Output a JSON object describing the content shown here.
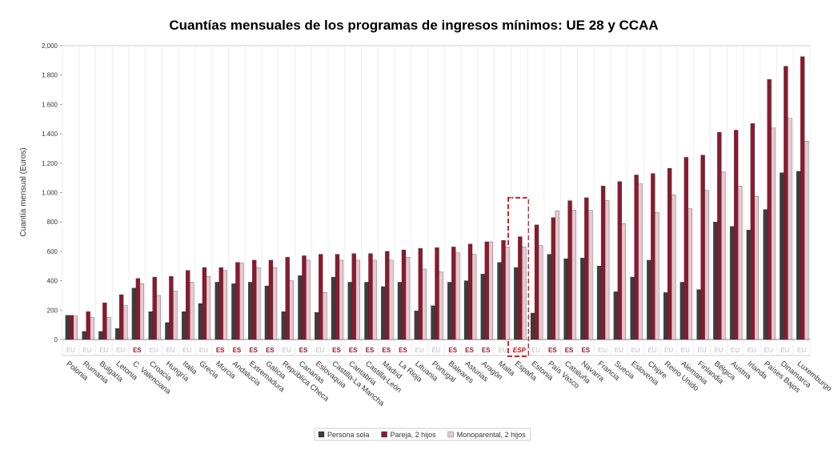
{
  "chart_data": {
    "type": "bar",
    "title": "Cuantías mensuales de los programas de ingresos mínimos: UE 28 y CCAA",
    "y_label": "Cuantía mensual (Euros)",
    "categories": [
      "Polonia",
      "Rumania",
      "Bulgaria",
      "Letonia",
      "C. Valenciana",
      "Croacia",
      "Hungría",
      "Italia",
      "Grecia",
      "Murcia",
      "Andalucía",
      "Extremadura",
      "Galicia",
      "República Checa",
      "Canarias",
      "Eslovaquia",
      "Castilla-La Mancha",
      "Cantabria",
      "Castilla-León",
      "Madrid",
      "La Rioja",
      "Lituania",
      "Portugal",
      "Baleares",
      "Asturias",
      "Aragón",
      "Malta",
      "España",
      "Estonia",
      "País Vasco",
      "Cataluña",
      "Navarra",
      "Francia",
      "Suecia",
      "Eslovenia",
      "Chipre",
      "Reino Unido",
      "Alemania",
      "Finlandia",
      "Bélgica",
      "Austria",
      "Irlanda",
      "Países Bajos",
      "Dinamarca",
      "Luxemburgo"
    ],
    "tags": [
      "EU",
      "EU",
      "EU",
      "EU",
      "ES",
      "EU",
      "EU",
      "EU",
      "EU",
      "ES",
      "ES",
      "ES",
      "ES",
      "EU",
      "ES",
      "EU",
      "ES",
      "ES",
      "ES",
      "ES",
      "ES",
      "EU",
      "EU",
      "ES",
      "ES",
      "ES",
      "EU",
      "ESP",
      "EU",
      "ES",
      "ES",
      "ES",
      "EU",
      "EU",
      "EU",
      "EU",
      "EU",
      "EU",
      "EU",
      "EU",
      "EU",
      "EU",
      "EU",
      "EU",
      "EU"
    ],
    "series": [
      {
        "name": "Persona sola",
        "color": "#3d3d3d",
        "values": [
          165,
          55,
          55,
          75,
          350,
          190,
          115,
          190,
          245,
          390,
          380,
          390,
          365,
          190,
          435,
          185,
          425,
          390,
          390,
          360,
          390,
          195,
          230,
          390,
          400,
          445,
          525,
          490,
          180,
          580,
          550,
          555,
          500,
          325,
          425,
          540,
          320,
          390,
          340,
          800,
          770,
          745,
          885,
          1135,
          1145
        ]
      },
      {
        "name": "Pareja, 2 hijos",
        "color": "#8b1a2e",
        "values": [
          165,
          190,
          250,
          305,
          415,
          425,
          430,
          470,
          490,
          490,
          525,
          540,
          540,
          560,
          570,
          580,
          580,
          585,
          585,
          600,
          610,
          620,
          625,
          630,
          650,
          665,
          675,
          700,
          780,
          830,
          945,
          965,
          1045,
          1075,
          1120,
          1130,
          1165,
          1240,
          1255,
          1410,
          1425,
          1470,
          1770,
          1860,
          1925
        ]
      },
      {
        "name": "Monoparental, 2 hijos",
        "color": "#e6c8ce",
        "values": [
          160,
          150,
          150,
          230,
          380,
          300,
          330,
          390,
          430,
          470,
          520,
          490,
          490,
          400,
          540,
          320,
          540,
          540,
          540,
          540,
          560,
          480,
          460,
          590,
          580,
          665,
          630,
          630,
          640,
          875,
          880,
          880,
          945,
          790,
          1060,
          865,
          985,
          890,
          1015,
          1140,
          1045,
          975,
          1440,
          1505,
          1350
        ]
      }
    ],
    "ylim": [
      0,
      2000
    ],
    "yticks": [
      0,
      200,
      400,
      600,
      800,
      {
        "value": 1000,
        "label": "1.000"
      },
      {
        "value": 1200,
        "label": "1.200"
      },
      {
        "value": 1400,
        "label": "1.400"
      },
      {
        "value": 1600,
        "label": "1.600"
      },
      {
        "value": 1800,
        "label": "1.800"
      },
      {
        "value": 2000,
        "label": "2,000"
      }
    ]
  }
}
